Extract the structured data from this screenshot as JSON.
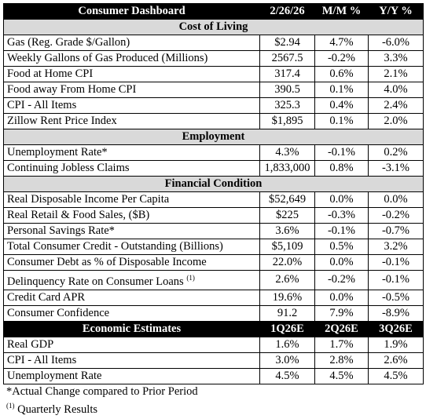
{
  "header": {
    "title": "Consumer Dashboard",
    "columns": [
      "2/26/26",
      "M/M %",
      "Y/Y %"
    ]
  },
  "sections": [
    {
      "title": "Cost of Living",
      "rows": [
        {
          "label": "Gas (Reg. Grade $/Gallon)",
          "values": [
            "$2.94",
            "4.7%",
            "-6.0%"
          ]
        },
        {
          "label": "Weekly Gallons of Gas Produced (Millions)",
          "values": [
            "2567.5",
            "-0.2%",
            "3.3%"
          ]
        },
        {
          "label": "Food at Home CPI",
          "values": [
            "317.4",
            "0.6%",
            "2.1%"
          ]
        },
        {
          "label": "Food away From Home CPI",
          "values": [
            "390.5",
            "0.1%",
            "4.0%"
          ]
        },
        {
          "label": "CPI - All Items",
          "values": [
            "325.3",
            "0.4%",
            "2.4%"
          ]
        },
        {
          "label": "Zillow Rent Price Index",
          "values": [
            "$1,895",
            "0.1%",
            "2.0%"
          ]
        }
      ]
    },
    {
      "title": "Employment",
      "rows": [
        {
          "label": "Unemployment Rate*",
          "values": [
            "4.3%",
            "-0.1%",
            "0.2%"
          ]
        },
        {
          "label": "Continuing Jobless Claims",
          "values": [
            "1,833,000",
            "0.8%",
            "-3.1%"
          ]
        }
      ]
    },
    {
      "title": "Financial Condition",
      "rows": [
        {
          "label": "Real Disposable Income Per Capita",
          "values": [
            "$52,649",
            "0.0%",
            "0.0%"
          ]
        },
        {
          "label": "Real Retail & Food Sales, ($B)",
          "values": [
            "$225",
            "-0.3%",
            "-0.2%"
          ]
        },
        {
          "label": "Personal Savings Rate*",
          "values": [
            "3.6%",
            "-0.1%",
            "-0.7%"
          ]
        },
        {
          "label": "Total Consumer Credit - Outstanding (Billions)",
          "values": [
            "$5,109",
            "0.5%",
            "3.2%"
          ]
        },
        {
          "label": "Consumer Debt as % of Disposable Income",
          "values": [
            "22.0%",
            "0.0%",
            "-0.1%"
          ]
        },
        {
          "label": "Delinquency Rate on Consumer Loans",
          "note": "(1)",
          "values": [
            "2.6%",
            "-0.2%",
            "-0.1%"
          ]
        },
        {
          "label": "Credit Card APR",
          "values": [
            "19.6%",
            "0.0%",
            "-0.5%"
          ]
        },
        {
          "label": "Consumer Confidence",
          "values": [
            "91.2",
            "7.9%",
            "-8.9%"
          ]
        }
      ]
    }
  ],
  "estimates": {
    "title": "Economic Estimates",
    "columns": [
      "1Q26E",
      "2Q26E",
      "3Q26E"
    ],
    "rows": [
      {
        "label": "Real GDP",
        "values": [
          "1.6%",
          "1.7%",
          "1.9%"
        ]
      },
      {
        "label": "CPI - All Items",
        "values": [
          "3.0%",
          "2.8%",
          "2.6%"
        ]
      },
      {
        "label": "Unemployment Rate",
        "values": [
          "4.5%",
          "4.5%",
          "4.5%"
        ]
      }
    ]
  },
  "footnotes": [
    {
      "text": "*Actual Change compared to Prior Period"
    },
    {
      "marker": "(1)",
      "text": "Quarterly Results"
    }
  ]
}
